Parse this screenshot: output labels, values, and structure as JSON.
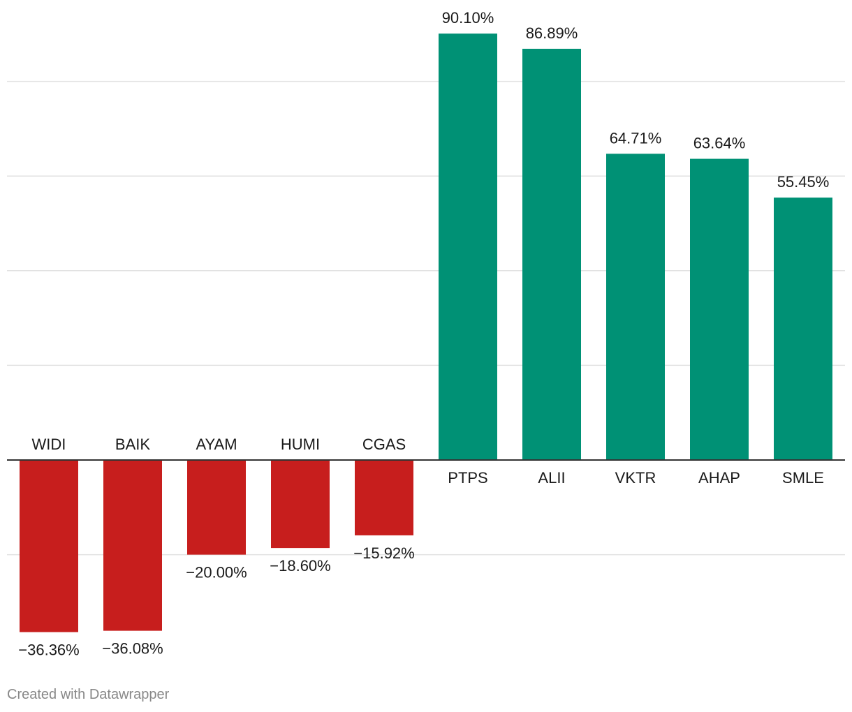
{
  "chart_data": {
    "type": "bar",
    "categories": [
      "WIDI",
      "BAIK",
      "AYAM",
      "HUMI",
      "CGAS",
      "PTPS",
      "ALII",
      "VKTR",
      "AHAP",
      "SMLE"
    ],
    "values": [
      -36.36,
      -36.08,
      -20.0,
      -18.6,
      -15.92,
      90.1,
      86.89,
      64.71,
      63.64,
      55.45
    ],
    "value_labels": [
      "−36.36%",
      "−36.08%",
      "−20.00%",
      "−18.60%",
      "−15.92%",
      "90.10%",
      "86.89%",
      "64.71%",
      "63.64%",
      "55.45%"
    ],
    "title": "",
    "xlabel": "",
    "ylabel": "",
    "ylim": [
      -40,
      100
    ],
    "gridlines": [
      -20,
      20,
      40,
      60,
      80
    ],
    "grid": true,
    "colors": {
      "positive": "#009175",
      "negative": "#c71e1d",
      "gridline": "#e2e2e2",
      "baseline": "#333333"
    }
  },
  "credit": "Created with Datawrapper"
}
